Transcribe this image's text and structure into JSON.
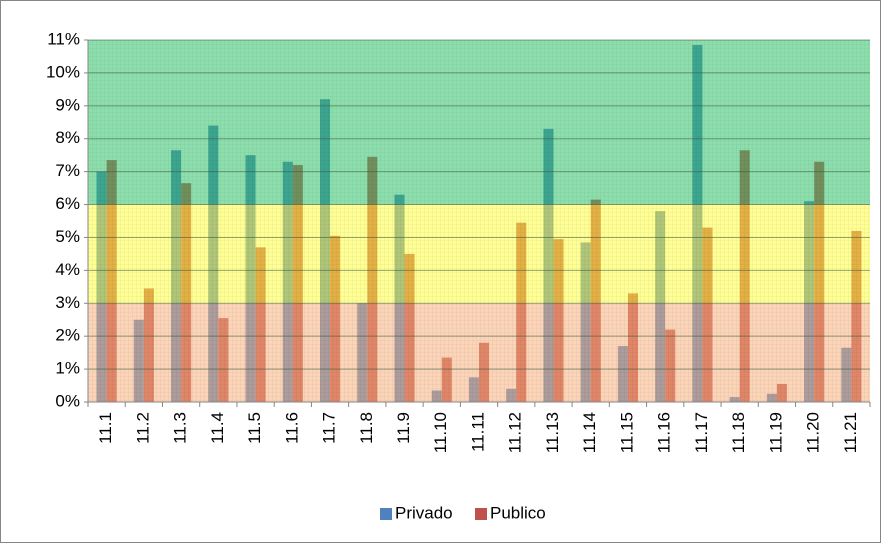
{
  "chart_data": {
    "type": "bar",
    "categories": [
      "11.1",
      "11.2",
      "11.3",
      "11.4",
      "11.5",
      "11.6",
      "11.7",
      "11.8",
      "11.9",
      "11.10",
      "11.11",
      "11.12",
      "11.13",
      "11.14",
      "11.15",
      "11.16",
      "11.17",
      "11.18",
      "11.19",
      "11.20",
      "11.21"
    ],
    "series": [
      {
        "name": "Privado",
        "color": "#4f81bd",
        "values": [
          7.0,
          2.5,
          7.65,
          8.4,
          7.5,
          7.3,
          9.2,
          3.0,
          6.3,
          0.35,
          0.75,
          0.4,
          8.3,
          4.85,
          1.7,
          5.8,
          10.85,
          0.15,
          0.25,
          6.1,
          1.65
        ]
      },
      {
        "name": "Publico",
        "color": "#c0504d",
        "values": [
          7.35,
          3.45,
          6.65,
          2.55,
          4.7,
          7.2,
          5.05,
          7.45,
          4.5,
          1.35,
          1.8,
          5.45,
          4.95,
          6.15,
          3.3,
          2.2,
          5.3,
          7.65,
          0.55,
          7.3,
          5.2
        ]
      }
    ],
    "ylim": [
      0,
      11
    ],
    "yticks": [
      {
        "value": 0,
        "label": "0%"
      },
      {
        "value": 1,
        "label": "1%"
      },
      {
        "value": 2,
        "label": "2%"
      },
      {
        "value": 3,
        "label": "3%"
      },
      {
        "value": 4,
        "label": "4%"
      },
      {
        "value": 5,
        "label": "5%"
      },
      {
        "value": 6,
        "label": "6%"
      },
      {
        "value": 7,
        "label": "7%"
      },
      {
        "value": 8,
        "label": "8%"
      },
      {
        "value": 9,
        "label": "9%"
      },
      {
        "value": 10,
        "label": "10%"
      },
      {
        "value": 11,
        "label": "11%"
      }
    ],
    "bands": [
      {
        "from": 0,
        "to": 3,
        "color": "#f9b27f"
      },
      {
        "from": 3,
        "to": 6,
        "color": "#ffff40"
      },
      {
        "from": 6,
        "to": 11,
        "color": "#2fc26a"
      }
    ],
    "grid": true,
    "legend": "bottom"
  }
}
